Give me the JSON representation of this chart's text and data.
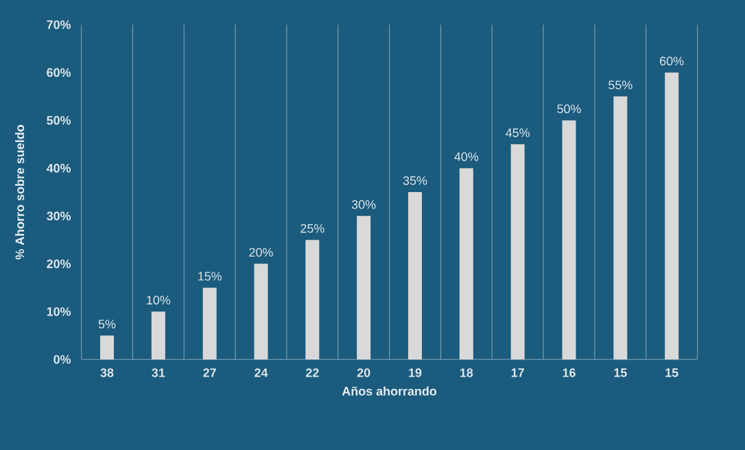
{
  "chart_data": {
    "type": "bar",
    "xlabel": "Años ahorrando",
    "ylabel": "% Ahorro sobre sueldo",
    "categories": [
      "38",
      "31",
      "27",
      "24",
      "22",
      "20",
      "19",
      "18",
      "17",
      "16",
      "15",
      "15"
    ],
    "values": [
      5,
      10,
      15,
      20,
      25,
      30,
      35,
      40,
      45,
      50,
      55,
      60
    ],
    "value_labels": [
      "5%",
      "10%",
      "15%",
      "20%",
      "25%",
      "30%",
      "35%",
      "40%",
      "45%",
      "50%",
      "55%",
      "60%"
    ],
    "color": "#d9d9d9",
    "ylim": [
      0,
      70
    ],
    "yticks": [
      {
        "value": 0,
        "label": "0%"
      },
      {
        "value": 10,
        "label": "10%"
      },
      {
        "value": 20,
        "label": "20%"
      },
      {
        "value": 30,
        "label": "30%"
      },
      {
        "value": 40,
        "label": "40%"
      },
      {
        "value": 50,
        "label": "50%"
      },
      {
        "value": 60,
        "label": "60%"
      },
      {
        "value": 70,
        "label": "70%"
      }
    ],
    "grid": "x"
  }
}
